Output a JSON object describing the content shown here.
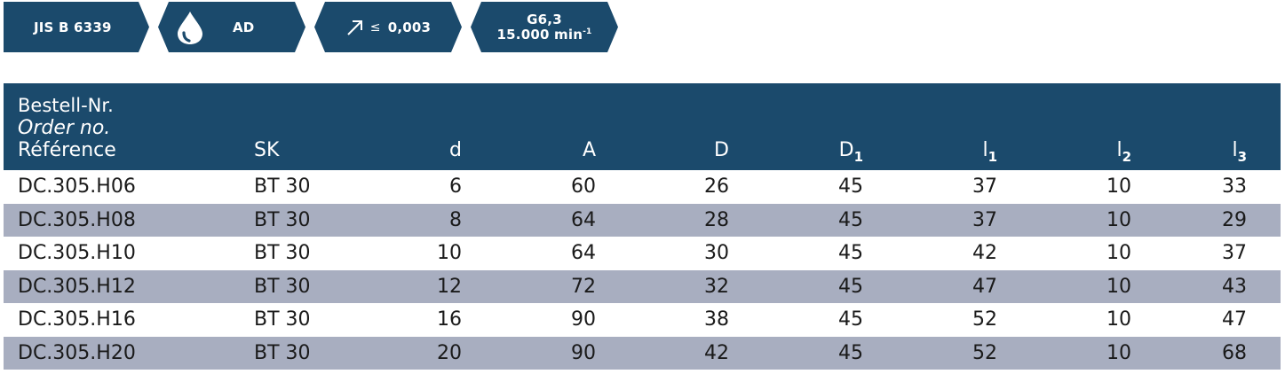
{
  "badges": {
    "standard": "JIS B 6339",
    "coolant": {
      "icon": "drop-icon",
      "label": "AD"
    },
    "runout": {
      "icon": "arrow-up-right-icon",
      "symbol": "≤",
      "value": "0,003"
    },
    "balance": {
      "grade": "G6,3",
      "speed": "15.000 min",
      "speed_exp": "-1"
    }
  },
  "table": {
    "header": {
      "ref_de": "Bestell-Nr.",
      "ref_en": "Order no.",
      "ref_fr": "Référence",
      "sk": "SK",
      "d": "d",
      "A": "A",
      "D": "D",
      "D1_base": "D",
      "D1_sub": "1",
      "l1_base": "l",
      "l1_sub": "1",
      "l2_base": "l",
      "l2_sub": "2",
      "l3_base": "l",
      "l3_sub": "3"
    },
    "rows": [
      {
        "ref": "DC.305.H06",
        "sk": "BT 30",
        "d": "6",
        "A": "60",
        "D": "26",
        "D1": "45",
        "l1": "37",
        "l2": "10",
        "l3": "33"
      },
      {
        "ref": "DC.305.H08",
        "sk": "BT 30",
        "d": "8",
        "A": "64",
        "D": "28",
        "D1": "45",
        "l1": "37",
        "l2": "10",
        "l3": "29"
      },
      {
        "ref": "DC.305.H10",
        "sk": "BT 30",
        "d": "10",
        "A": "64",
        "D": "30",
        "D1": "45",
        "l1": "42",
        "l2": "10",
        "l3": "37"
      },
      {
        "ref": "DC.305.H12",
        "sk": "BT 30",
        "d": "12",
        "A": "72",
        "D": "32",
        "D1": "45",
        "l1": "47",
        "l2": "10",
        "l3": "43"
      },
      {
        "ref": "DC.305.H16",
        "sk": "BT 30",
        "d": "16",
        "A": "90",
        "D": "38",
        "D1": "45",
        "l1": "52",
        "l2": "10",
        "l3": "47"
      },
      {
        "ref": "DC.305.H20",
        "sk": "BT 30",
        "d": "20",
        "A": "90",
        "D": "42",
        "D1": "45",
        "l1": "52",
        "l2": "10",
        "l3": "68"
      }
    ]
  },
  "colors": {
    "header_bg": "#1b4a6c",
    "alt_row_bg": "#a8aec0",
    "text": "#1a1a1a"
  }
}
